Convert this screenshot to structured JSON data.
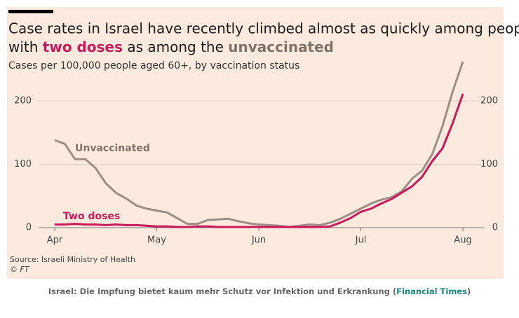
{
  "chart_data": {
    "type": "line",
    "title": [
      "Case rates in Israel have recently climbed almost as quickly among people",
      [
        "with ",
        "two doses",
        " as among the ",
        "unvaccinated"
      ]
    ],
    "subtitle": "Cases per 100,000 people aged 60+, by vaccination status",
    "categories": [
      "Apr",
      null,
      null,
      null,
      null,
      null,
      null,
      null,
      null,
      null,
      "May",
      null,
      null,
      null,
      null,
      null,
      null,
      null,
      null,
      null,
      "Jun",
      null,
      null,
      null,
      null,
      null,
      null,
      null,
      null,
      null,
      "Jul",
      null,
      null,
      null,
      null,
      null,
      null,
      null,
      null,
      null,
      "Aug"
    ],
    "series": [
      {
        "name": "Unvaccinated",
        "color": "#9b8e86",
        "values": [
          138,
          132,
          108,
          108,
          94,
          70,
          55,
          46,
          35,
          30,
          27,
          24,
          15,
          6,
          6,
          12,
          13,
          14,
          10,
          7,
          5,
          4,
          3,
          1,
          3,
          5,
          4,
          8,
          14,
          22,
          30,
          38,
          44,
          48,
          57,
          77,
          90,
          116,
          160,
          215,
          262
        ]
      },
      {
        "name": "Two doses",
        "color": "#c8195c",
        "values": [
          5,
          5,
          6,
          5,
          5,
          4,
          5,
          4,
          4,
          3,
          2,
          2,
          1,
          1,
          2,
          2,
          1,
          1,
          1,
          1,
          1,
          1,
          1,
          1,
          1,
          1,
          1,
          2,
          8,
          15,
          25,
          30,
          38,
          45,
          55,
          65,
          80,
          105,
          125,
          165,
          211
        ]
      }
    ],
    "ylim": [
      0,
      265
    ],
    "yticks": [
      0,
      100,
      200
    ],
    "grid": true,
    "source": "Source: Israeli Ministry of Health",
    "credit": "© FT",
    "caption": [
      "Israel: Die Impfung bietet kaum mehr Schutz vor Infektion und Erkrankung (",
      "Financial Times",
      ")"
    ]
  }
}
